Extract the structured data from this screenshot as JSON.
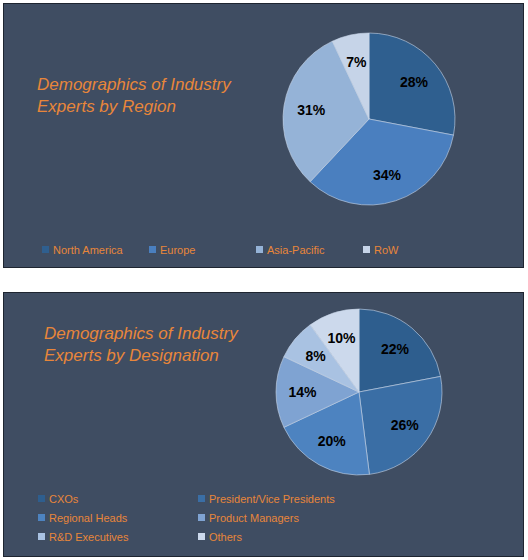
{
  "chart_data": [
    {
      "type": "pie",
      "title": "Demographics of Industry Experts by Region",
      "categories": [
        "North America",
        "Europe",
        "Asia-Pacific",
        "RoW"
      ],
      "values": [
        28,
        34,
        31,
        7
      ],
      "value_labels": [
        "28%",
        "34%",
        "31%",
        "7%"
      ],
      "colors": [
        "#2f5f8f",
        "#4a7fbf",
        "#95b3d7",
        "#c6d4e8"
      ],
      "data_labels": true,
      "legend": "bottom"
    },
    {
      "type": "pie",
      "title": "Demographics of Industry Experts by Designation",
      "categories": [
        "CXOs",
        "President/Vice Presidents",
        "Regional Heads",
        "Product Managers",
        "R&D Executives",
        "Others"
      ],
      "values": [
        22,
        26,
        20,
        14,
        8,
        10
      ],
      "value_labels": [
        "22%",
        "26%",
        "20%",
        "14%",
        "8%",
        "10%"
      ],
      "colors": [
        "#2e5e8e",
        "#3a6ea5",
        "#4d83c0",
        "#7fa3d2",
        "#a9c2e2",
        "#ccd9ec"
      ],
      "data_labels": true,
      "legend": "bottom"
    }
  ]
}
